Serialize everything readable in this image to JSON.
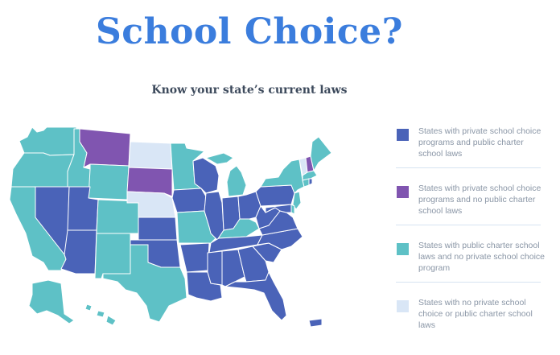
{
  "header": {
    "title": "School Choice?",
    "subtitle": "Know your state’s current laws"
  },
  "colors": {
    "private_and_charter": "#4a63b8",
    "private_no_charter": "#8055b0",
    "charter_no_private": "#5ec1c6",
    "neither": "#d9e6f6"
  },
  "legend": {
    "items": [
      {
        "key": "private_and_charter",
        "label": "States with private school choice programs and public charter school laws"
      },
      {
        "key": "private_no_charter",
        "label": "States with private school choice programs and no public charter school laws"
      },
      {
        "key": "charter_no_private",
        "label": "States with public charter school laws and no private school choice program"
      },
      {
        "key": "neither",
        "label": "States with no private school choice or public charter school laws"
      }
    ]
  },
  "map": {
    "states": [
      {
        "code": "WA",
        "category": "charter_no_private"
      },
      {
        "code": "OR",
        "category": "charter_no_private"
      },
      {
        "code": "CA",
        "category": "charter_no_private"
      },
      {
        "code": "ID",
        "category": "charter_no_private"
      },
      {
        "code": "NV",
        "category": "private_and_charter"
      },
      {
        "code": "MT",
        "category": "private_no_charter"
      },
      {
        "code": "WY",
        "category": "charter_no_private"
      },
      {
        "code": "UT",
        "category": "private_and_charter"
      },
      {
        "code": "AZ",
        "category": "private_and_charter"
      },
      {
        "code": "CO",
        "category": "charter_no_private"
      },
      {
        "code": "NM",
        "category": "charter_no_private"
      },
      {
        "code": "ND",
        "category": "neither"
      },
      {
        "code": "SD",
        "category": "private_no_charter"
      },
      {
        "code": "NE",
        "category": "neither"
      },
      {
        "code": "KS",
        "category": "private_and_charter"
      },
      {
        "code": "OK",
        "category": "private_and_charter"
      },
      {
        "code": "TX",
        "category": "charter_no_private"
      },
      {
        "code": "MN",
        "category": "charter_no_private"
      },
      {
        "code": "IA",
        "category": "private_and_charter"
      },
      {
        "code": "MO",
        "category": "charter_no_private"
      },
      {
        "code": "AR",
        "category": "private_and_charter"
      },
      {
        "code": "LA",
        "category": "private_and_charter"
      },
      {
        "code": "WI",
        "category": "private_and_charter"
      },
      {
        "code": "IL",
        "category": "private_and_charter"
      },
      {
        "code": "MI",
        "category": "charter_no_private"
      },
      {
        "code": "IN",
        "category": "private_and_charter"
      },
      {
        "code": "OH",
        "category": "private_and_charter"
      },
      {
        "code": "KY",
        "category": "charter_no_private"
      },
      {
        "code": "TN",
        "category": "private_and_charter"
      },
      {
        "code": "MS",
        "category": "private_and_charter"
      },
      {
        "code": "AL",
        "category": "private_and_charter"
      },
      {
        "code": "GA",
        "category": "private_and_charter"
      },
      {
        "code": "FL",
        "category": "private_and_charter"
      },
      {
        "code": "SC",
        "category": "private_and_charter"
      },
      {
        "code": "NC",
        "category": "private_and_charter"
      },
      {
        "code": "VA",
        "category": "private_and_charter"
      },
      {
        "code": "WV",
        "category": "private_and_charter"
      },
      {
        "code": "PA",
        "category": "private_and_charter"
      },
      {
        "code": "NY",
        "category": "charter_no_private"
      },
      {
        "code": "VT",
        "category": "neither"
      },
      {
        "code": "NH",
        "category": "private_no_charter"
      },
      {
        "code": "ME",
        "category": "charter_no_private"
      },
      {
        "code": "MA",
        "category": "charter_no_private"
      },
      {
        "code": "CT",
        "category": "charter_no_private"
      },
      {
        "code": "RI",
        "category": "private_and_charter"
      },
      {
        "code": "NJ",
        "category": "charter_no_private"
      },
      {
        "code": "DE",
        "category": "charter_no_private"
      },
      {
        "code": "MD",
        "category": "private_and_charter"
      },
      {
        "code": "AK",
        "category": "charter_no_private"
      },
      {
        "code": "HI",
        "category": "charter_no_private"
      },
      {
        "code": "PR",
        "category": "private_and_charter"
      }
    ]
  }
}
